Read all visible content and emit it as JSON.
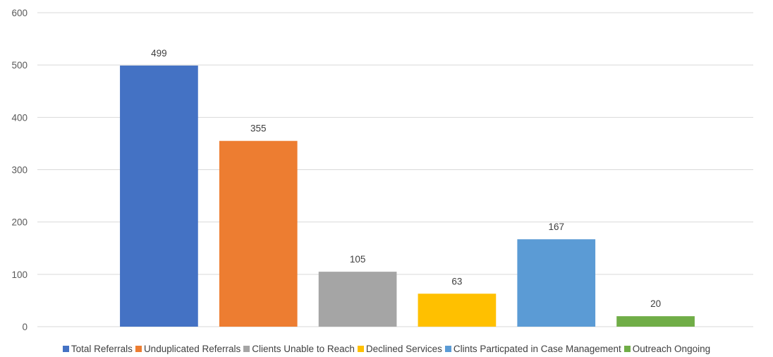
{
  "chart_data": {
    "type": "bar",
    "title": "",
    "xlabel": "",
    "ylabel": "",
    "ylim": [
      0,
      600
    ],
    "yticks": [
      0,
      100,
      200,
      300,
      400,
      500,
      600
    ],
    "grid": true,
    "legend_position": "bottom",
    "categories": [
      "Total Referrals",
      "Unduplicated Referrals",
      "Clients Unable to Reach",
      "Declined Services",
      "Clints Particpated in Case Management",
      "Outreach Ongoing"
    ],
    "values": [
      499,
      355,
      105,
      63,
      167,
      20
    ],
    "colors": [
      "#4472C4",
      "#ED7D31",
      "#A5A5A5",
      "#FFC000",
      "#5B9BD5",
      "#70AD47"
    ]
  }
}
